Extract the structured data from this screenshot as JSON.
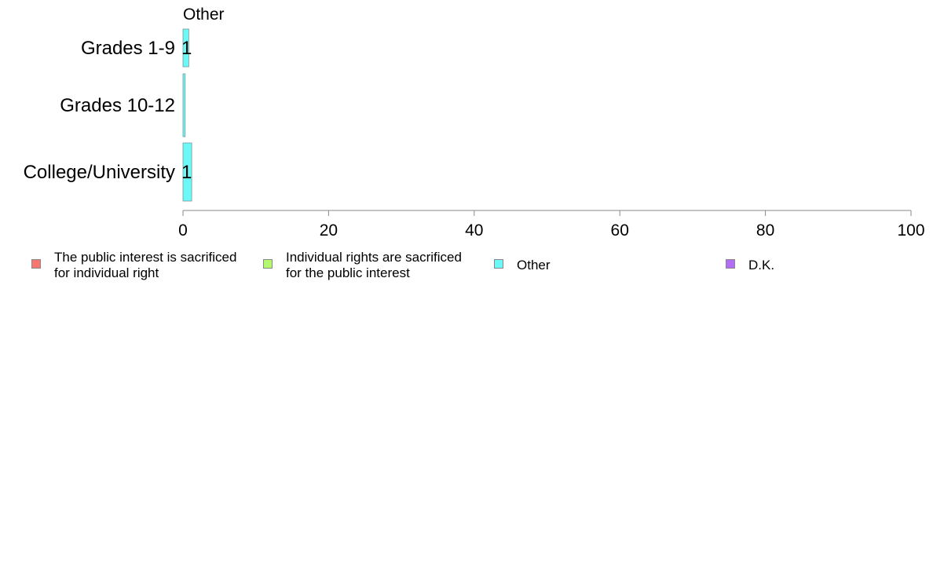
{
  "chart_data": {
    "type": "bar",
    "orientation": "horizontal",
    "stacked": true,
    "title": "Other",
    "categories": [
      "Grades 1-9",
      "Grades 10-12",
      "College/University"
    ],
    "xlim": [
      0,
      100
    ],
    "xticks": [
      0,
      20,
      40,
      60,
      80,
      100
    ],
    "series": [
      {
        "name": "The public interest is sacrificed\nfor individual right",
        "color": "#F8766D",
        "values": [
          0,
          0,
          0
        ]
      },
      {
        "name": "Individual rights are sacrificed\nfor the public interest",
        "color": "#B4F86D",
        "values": [
          0,
          0,
          0
        ]
      },
      {
        "name": "Other",
        "color": "#6DF8F8",
        "values": [
          0.8,
          0.3,
          1.2
        ]
      },
      {
        "name": "D.K.",
        "color": "#B46DF8",
        "values": [
          0,
          0,
          0
        ]
      }
    ],
    "data_labels": [
      "1",
      "",
      "1"
    ],
    "legend_position": "bottom",
    "grid": false
  }
}
